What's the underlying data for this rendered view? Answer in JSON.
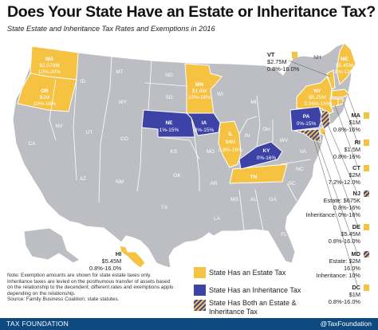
{
  "title": "Does Your State Have an Estate or Inheritance Tax?",
  "subtitle": "State Estate and Inheritance Tax Rates and Exemptions in 2016",
  "colors": {
    "estate": "#f5c242",
    "inheritance": "#3d43a6",
    "none": "#bdbec3",
    "footer": "#0e4a7f"
  },
  "map_labels": {
    "WA": {
      "ab": "WA",
      "l1": "$2.078M",
      "l2": "10%-20%"
    },
    "OR": {
      "ab": "OR",
      "l1": "$1M",
      "l2": "10%-16%"
    },
    "MN": {
      "ab": "MN",
      "l1": "$1.6M",
      "l2": "10%-16%"
    },
    "IL": {
      "ab": "IL",
      "l1": "$4M",
      "l2": "0.8%-16%"
    },
    "NE": {
      "ab": "NE",
      "l1": "1%-15%"
    },
    "IA": {
      "ab": "IA",
      "l1": "0%-15%"
    },
    "KY": {
      "ab": "KY",
      "l1": "0%-16%"
    },
    "PA": {
      "ab": "PA",
      "l1": "0%-15%"
    },
    "NY": {
      "ab": "NY",
      "l1": "$5.25M",
      "l2": "3.06%-16%"
    },
    "ME": {
      "ab": "ME",
      "l1": "$5.45M",
      "l2": "8%-12%"
    },
    "TN": {
      "ab": "TN"
    },
    "plain": [
      "ID",
      "MT",
      "ND",
      "SD",
      "WY",
      "NV",
      "UT",
      "CO",
      "CA",
      "AZ",
      "NM",
      "KS",
      "OK",
      "TX",
      "MO",
      "AR",
      "LA",
      "MS",
      "AL",
      "GA",
      "FL",
      "SC",
      "NC",
      "VA",
      "WV",
      "OH",
      "IN",
      "MI",
      "WI",
      "NH"
    ]
  },
  "side_panel": [
    {
      "ab": "VT",
      "type": "estate",
      "lines": [
        "$2.75M",
        "0.8%-16.0%"
      ]
    },
    {
      "ab": "MA",
      "type": "estate",
      "lines": [
        "$1M",
        "0.8%-16%"
      ]
    },
    {
      "ab": "RI",
      "type": "estate",
      "lines": [
        "$1.5M",
        "0.8%-16%"
      ]
    },
    {
      "ab": "CT",
      "type": "estate",
      "lines": [
        "$2M",
        "7.2%-12.0%"
      ]
    },
    {
      "ab": "NJ",
      "type": "both",
      "lines": [
        "Estate: $675K",
        "0.8%-16%",
        "Inheritance: 0%-16%"
      ]
    },
    {
      "ab": "DE",
      "type": "estate",
      "lines": [
        "$5.45M",
        "0.8%-16.0%"
      ]
    },
    {
      "ab": "MD",
      "type": "both",
      "lines": [
        "Estate: $2M",
        "16.0%",
        "Inheritance: 10%"
      ]
    },
    {
      "ab": "DC",
      "type": "estate",
      "lines": [
        "$1M",
        "0.8%-16.0%"
      ]
    }
  ],
  "hawaii": {
    "ab": "HI",
    "lines": [
      "$5.45M",
      "0.8%-16.0%"
    ]
  },
  "note": "Note: Exemption amounts are shown for state estate taxes only. Inheritance taxes are levied on the posthumous transfer of assets based on the relationship to the decendent; different rates and exemptions applu depending on the relationship.",
  "source": "Source: Family Business Coalition; state statutes.",
  "legend": [
    {
      "type": "estate",
      "label": "State Has an Estate Tax"
    },
    {
      "type": "inheritance",
      "label": "State Has an Inheritance Tax"
    },
    {
      "type": "both",
      "label": "State Has Both an Estate & Inheritance Tax"
    }
  ],
  "footer": {
    "left": "TAX FOUNDATION",
    "right": "@TaxFoundation"
  }
}
